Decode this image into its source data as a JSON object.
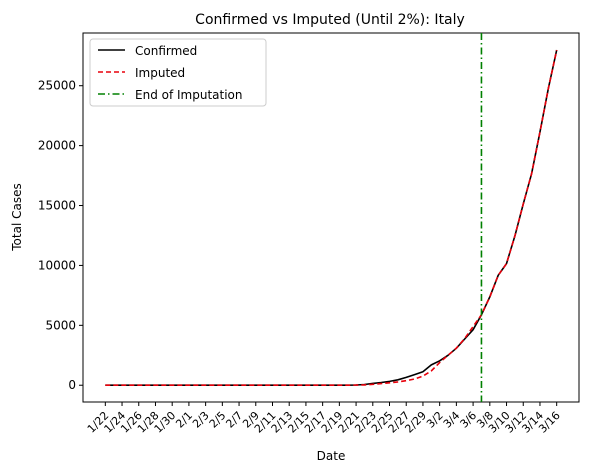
{
  "chart_data": {
    "type": "line",
    "title": "Confirmed vs Imputed (Until 2%): Italy",
    "xlabel": "Date",
    "ylabel": "Total Cases",
    "ylim": [
      -1400,
      29400
    ],
    "yticks": [
      0,
      5000,
      10000,
      15000,
      20000,
      25000
    ],
    "grid": false,
    "legend_position": "upper-left",
    "x": [
      "1/22",
      "1/23",
      "1/24",
      "1/25",
      "1/26",
      "1/27",
      "1/28",
      "1/29",
      "1/30",
      "1/31",
      "2/1",
      "2/2",
      "2/3",
      "2/4",
      "2/5",
      "2/6",
      "2/7",
      "2/8",
      "2/9",
      "2/10",
      "2/11",
      "2/12",
      "2/13",
      "2/14",
      "2/15",
      "2/16",
      "2/17",
      "2/18",
      "2/19",
      "2/20",
      "2/21",
      "2/22",
      "2/23",
      "2/24",
      "2/25",
      "2/26",
      "2/27",
      "2/28",
      "2/29",
      "3/1",
      "3/2",
      "3/3",
      "3/4",
      "3/5",
      "3/6",
      "3/7",
      "3/8",
      "3/9",
      "3/10",
      "3/11",
      "3/12",
      "3/13",
      "3/14",
      "3/15",
      "3/16"
    ],
    "xtick_labels": [
      "1/22",
      "1/24",
      "1/26",
      "1/28",
      "1/30",
      "2/1",
      "2/3",
      "2/5",
      "2/7",
      "2/9",
      "2/11",
      "2/13",
      "2/15",
      "2/17",
      "2/19",
      "2/21",
      "2/23",
      "2/25",
      "2/27",
      "2/29",
      "3/2",
      "3/4",
      "3/6",
      "3/8",
      "3/10",
      "3/12",
      "3/14",
      "3/16"
    ],
    "series": [
      {
        "name": "Confirmed",
        "color": "#000000",
        "style": "solid",
        "values": [
          0,
          0,
          0,
          0,
          0,
          0,
          0,
          0,
          0,
          2,
          2,
          2,
          2,
          2,
          2,
          2,
          3,
          3,
          3,
          3,
          3,
          3,
          3,
          3,
          3,
          3,
          3,
          3,
          3,
          3,
          20,
          62,
          155,
          229,
          322,
          453,
          655,
          888,
          1128,
          1694,
          2036,
          2502,
          3089,
          3858,
          4636,
          5883,
          7375,
          9172,
          10149,
          12462,
          15113,
          17660,
          21157,
          24747,
          27980
        ]
      },
      {
        "name": "Imputed",
        "color": "#e8000b",
        "style": "dashed",
        "values": [
          0,
          0,
          0,
          0,
          0,
          0,
          0,
          0,
          0,
          0,
          0,
          0,
          0,
          0,
          0,
          0,
          0,
          0,
          0,
          0,
          0,
          0,
          0,
          0,
          0,
          0,
          0,
          0,
          0,
          0,
          10,
          30,
          80,
          140,
          200,
          280,
          380,
          520,
          760,
          1200,
          1900,
          2500,
          3100,
          3900,
          4900,
          5883,
          7375,
          9172,
          10149,
          12462,
          15113,
          17660,
          21157,
          24747,
          27980
        ]
      }
    ],
    "vline": {
      "name": "End of Imputation",
      "x": "3/7",
      "color": "#008000",
      "style": "dashdot"
    }
  }
}
